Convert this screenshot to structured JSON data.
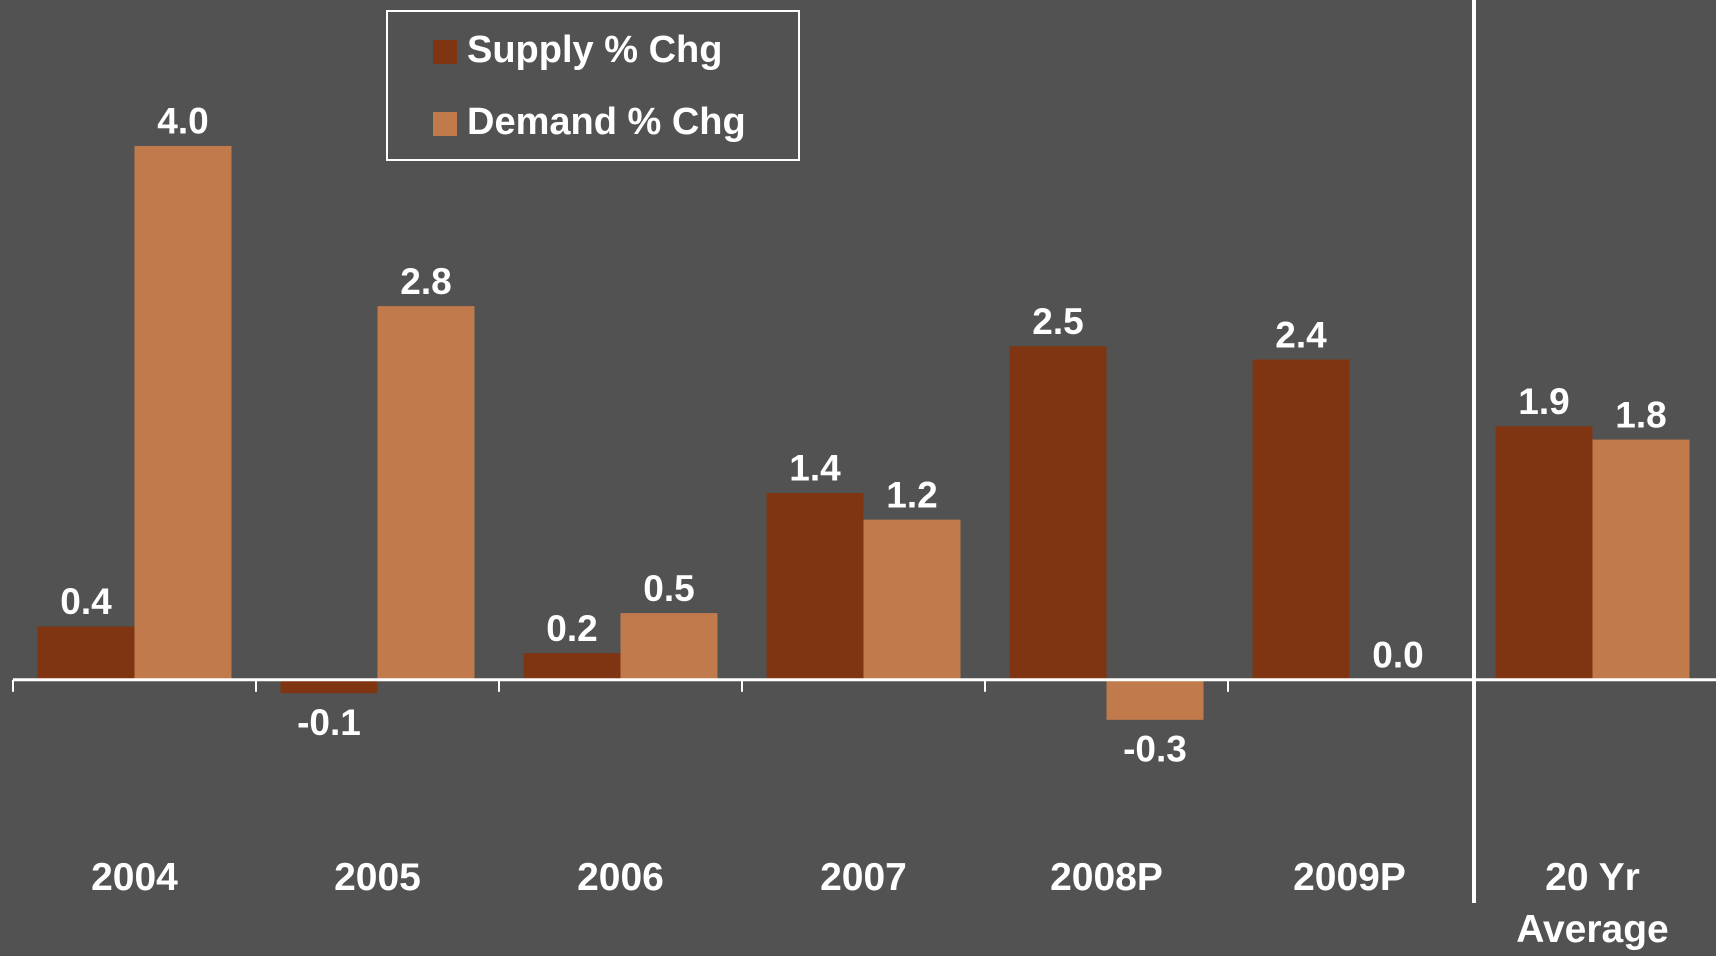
{
  "chart_data": {
    "type": "bar",
    "categories": [
      "2004",
      "2005",
      "2006",
      "2007",
      "2008P",
      "2009P",
      "20 Yr Average"
    ],
    "series": [
      {
        "name": "Supply % Chg",
        "color": "#7f3512",
        "values": [
          0.4,
          -0.1,
          0.2,
          1.4,
          2.5,
          2.4,
          1.9
        ],
        "value_labels": [
          "0.4",
          "-0.1",
          "0.2",
          "1.4",
          "2.5",
          "2.4",
          "1.9"
        ]
      },
      {
        "name": "Demand % Chg",
        "color": "#c07a4c",
        "values": [
          4.0,
          2.8,
          0.5,
          1.2,
          -0.3,
          0.0,
          1.8
        ],
        "value_labels": [
          "4.0",
          "2.8",
          "0.5",
          "1.2",
          "-0.3",
          "0.0",
          "1.8"
        ]
      }
    ],
    "ylim": [
      -1.5,
      5
    ],
    "legend": "top-left"
  }
}
